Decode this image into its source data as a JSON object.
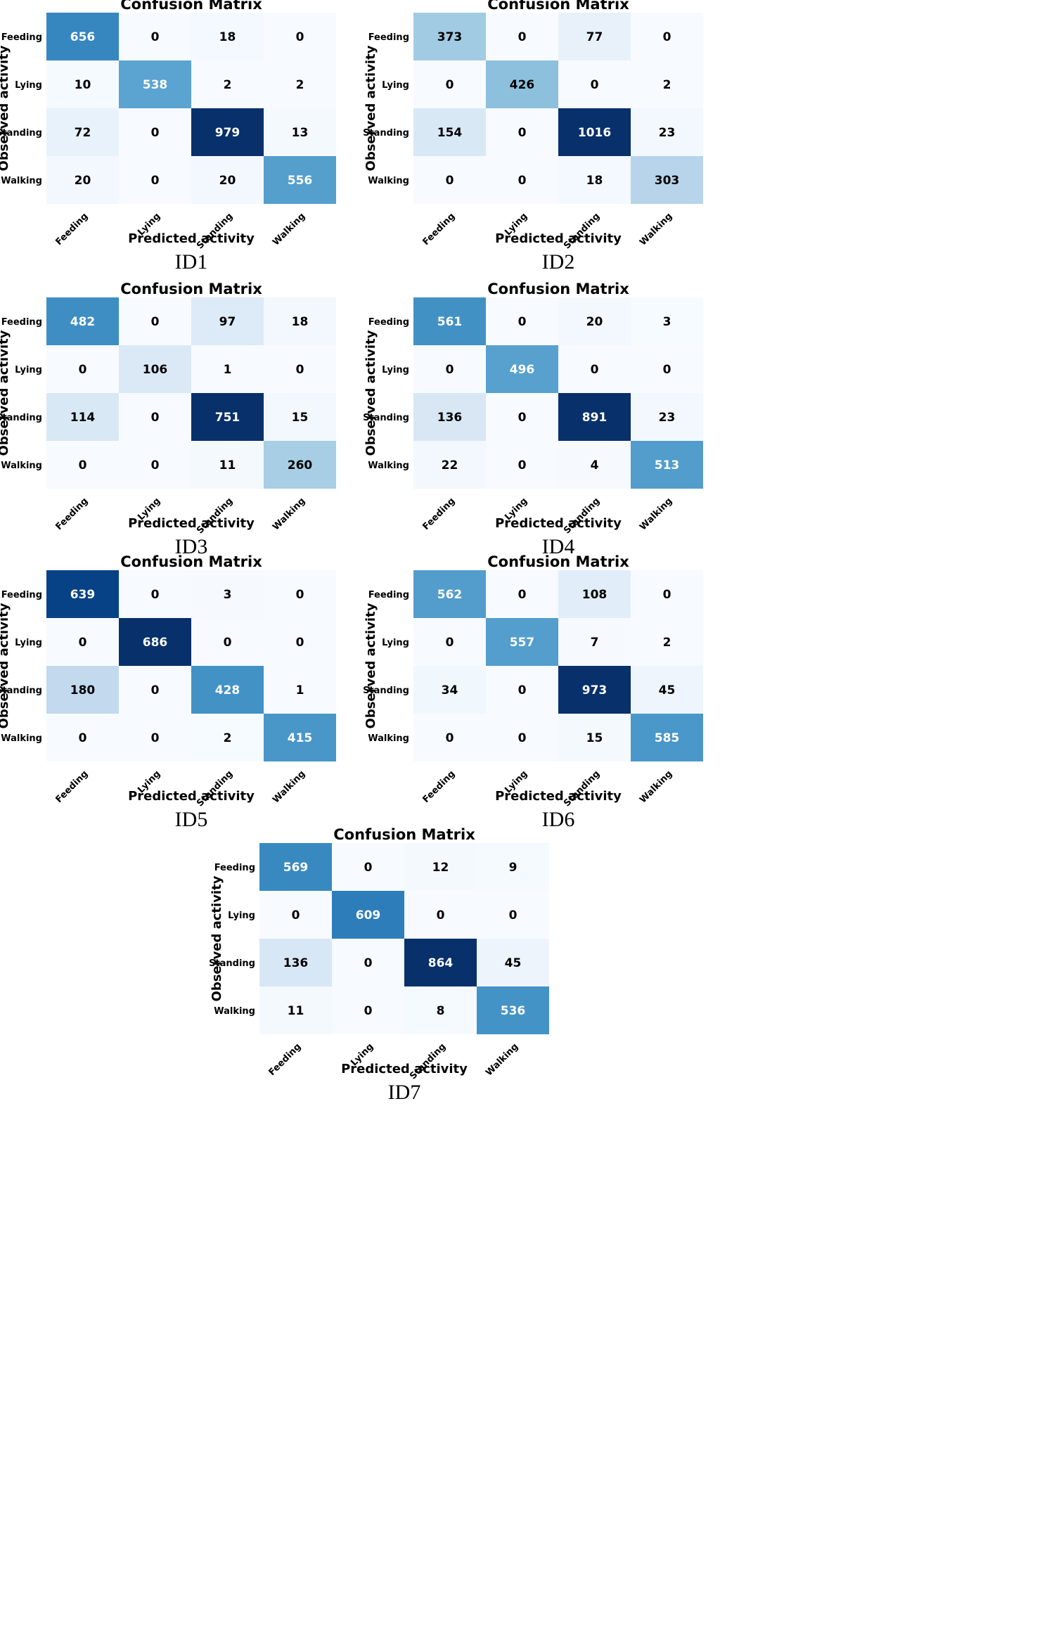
{
  "chart_data": [
    {
      "type": "heatmap",
      "title": "Confusion Matrix",
      "caption": "ID1",
      "xlabel": "Predicted activity",
      "ylabel": "Observed activity",
      "x_categories": [
        "Feeding",
        "Lying",
        "Standing",
        "Walking"
      ],
      "y_categories": [
        "Feeding",
        "Lying",
        "Standing",
        "Walking"
      ],
      "values": [
        [
          656,
          0,
          18,
          0
        ],
        [
          10,
          538,
          2,
          2
        ],
        [
          72,
          0,
          979,
          13
        ],
        [
          20,
          0,
          20,
          556
        ]
      ],
      "colormap": "Blues"
    },
    {
      "type": "heatmap",
      "title": "Confusion Matrix",
      "caption": "ID2",
      "xlabel": "Predicted activity",
      "ylabel": "Observed activity",
      "x_categories": [
        "Feeding",
        "Lying",
        "Standing",
        "Walking"
      ],
      "y_categories": [
        "Feeding",
        "Lying",
        "Standing",
        "Walking"
      ],
      "values": [
        [
          373,
          0,
          77,
          0
        ],
        [
          0,
          426,
          0,
          2
        ],
        [
          154,
          0,
          1016,
          23
        ],
        [
          0,
          0,
          18,
          303
        ]
      ],
      "colormap": "Blues"
    },
    {
      "type": "heatmap",
      "title": "Confusion Matrix",
      "caption": "ID3",
      "xlabel": "Predicted activity",
      "ylabel": "Observed activity",
      "x_categories": [
        "Feeding",
        "Lying",
        "Standing",
        "Walking"
      ],
      "y_categories": [
        "Feeding",
        "Lying",
        "Standing",
        "Walking"
      ],
      "values": [
        [
          482,
          0,
          97,
          18
        ],
        [
          0,
          106,
          1,
          0
        ],
        [
          114,
          0,
          751,
          15
        ],
        [
          0,
          0,
          11,
          260
        ]
      ],
      "colormap": "Blues"
    },
    {
      "type": "heatmap",
      "title": "Confusion Matrix",
      "caption": "ID4",
      "xlabel": "Predicted activity",
      "ylabel": "Observed activity",
      "x_categories": [
        "Feeding",
        "Lying",
        "Standing",
        "Walking"
      ],
      "y_categories": [
        "Feeding",
        "Lying",
        "Standing",
        "Walking"
      ],
      "values": [
        [
          561,
          0,
          20,
          3
        ],
        [
          0,
          496,
          0,
          0
        ],
        [
          136,
          0,
          891,
          23
        ],
        [
          22,
          0,
          4,
          513
        ]
      ],
      "colormap": "Blues"
    },
    {
      "type": "heatmap",
      "title": "Confusion Matrix",
      "caption": "ID5",
      "xlabel": "Predicted activity",
      "ylabel": "Observed activity",
      "x_categories": [
        "Feeding",
        "Lying",
        "Standing",
        "Walking"
      ],
      "y_categories": [
        "Feeding",
        "Lying",
        "Standing",
        "Walking"
      ],
      "values": [
        [
          639,
          0,
          3,
          0
        ],
        [
          0,
          686,
          0,
          0
        ],
        [
          180,
          0,
          428,
          1
        ],
        [
          0,
          0,
          2,
          415
        ]
      ],
      "colormap": "Blues"
    },
    {
      "type": "heatmap",
      "title": "Confusion Matrix",
      "caption": "ID6",
      "xlabel": "Predicted activity",
      "ylabel": "Observed activity",
      "x_categories": [
        "Feeding",
        "Lying",
        "Standing",
        "Walking"
      ],
      "y_categories": [
        "Feeding",
        "Lying",
        "Standing",
        "Walking"
      ],
      "values": [
        [
          562,
          0,
          108,
          0
        ],
        [
          0,
          557,
          7,
          2
        ],
        [
          34,
          0,
          973,
          45
        ],
        [
          0,
          0,
          15,
          585
        ]
      ],
      "colormap": "Blues"
    },
    {
      "type": "heatmap",
      "title": "Confusion Matrix",
      "caption": "ID7",
      "xlabel": "Predicted activity",
      "ylabel": "Observed activity",
      "x_categories": [
        "Feeding",
        "Lying",
        "Standing",
        "Walking"
      ],
      "y_categories": [
        "Feeding",
        "Lying",
        "Standing",
        "Walking"
      ],
      "values": [
        [
          569,
          0,
          12,
          9
        ],
        [
          0,
          609,
          0,
          0
        ],
        [
          136,
          0,
          864,
          45
        ],
        [
          11,
          0,
          8,
          536
        ]
      ],
      "colormap": "Blues"
    }
  ]
}
